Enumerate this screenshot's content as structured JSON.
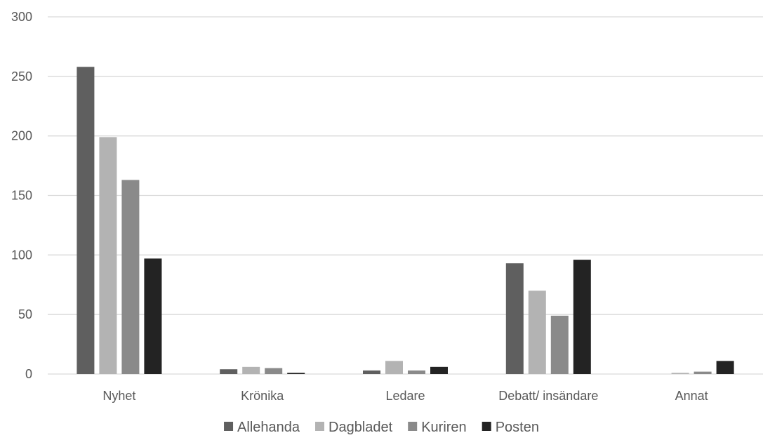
{
  "chart_data": {
    "type": "bar",
    "categories": [
      "Nyhet",
      "Krönika",
      "Ledare",
      "Debatt/ insändare",
      "Annat"
    ],
    "series": [
      {
        "name": "Allehanda",
        "values": [
          258,
          4,
          3,
          93,
          0
        ],
        "color": "#5f5f5f"
      },
      {
        "name": "Dagbladet",
        "values": [
          199,
          6,
          11,
          70,
          1
        ],
        "color": "#b3b3b3"
      },
      {
        "name": "Kuriren",
        "values": [
          163,
          5,
          3,
          49,
          2
        ],
        "color": "#8a8a8a"
      },
      {
        "name": "Posten",
        "values": [
          97,
          1,
          6,
          96,
          11
        ],
        "color": "#232323"
      }
    ],
    "yticks": [
      "0",
      "50",
      "100",
      "150",
      "200",
      "250",
      "300"
    ],
    "ylim": [
      0,
      300
    ],
    "grid": true,
    "legend_position": "bottom",
    "title": "",
    "xlabel": "",
    "ylabel": ""
  }
}
